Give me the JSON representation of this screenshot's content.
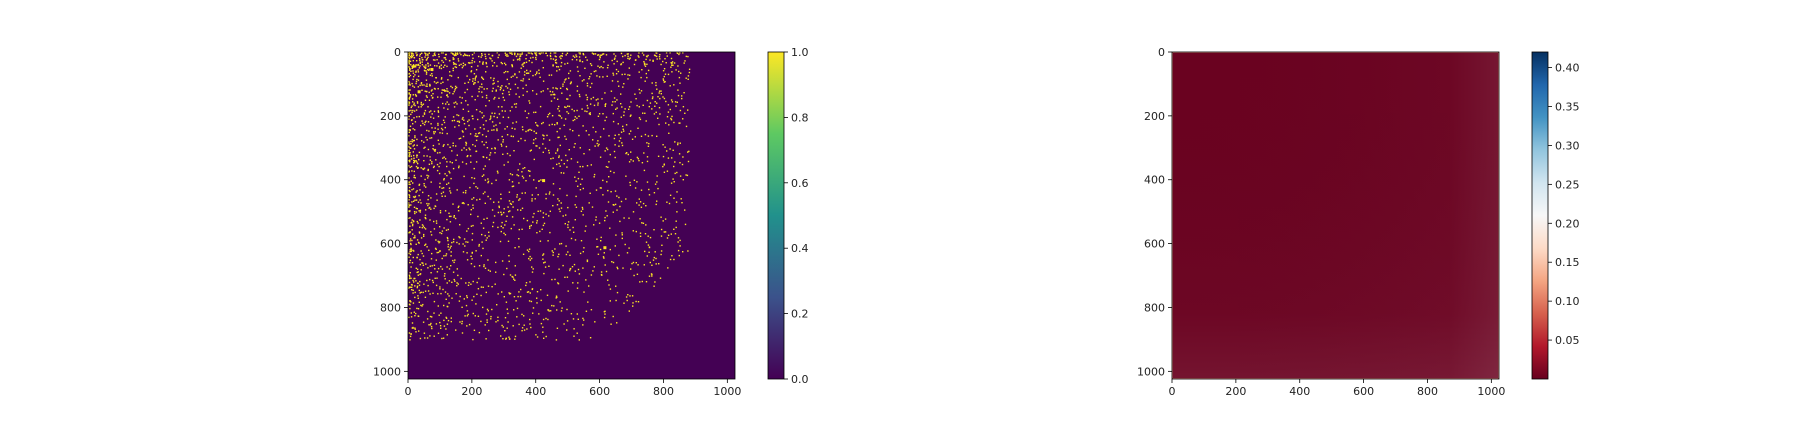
{
  "chart_data": [
    {
      "type": "heatmap",
      "title": "",
      "xlabel": "",
      "ylabel": "",
      "xlim": [
        0,
        1024
      ],
      "ylim": [
        1024,
        0
      ],
      "xticks": [
        0,
        200,
        400,
        600,
        800,
        1000
      ],
      "yticks": [
        0,
        200,
        400,
        600,
        800,
        1000
      ],
      "colormap": "viridis",
      "value_range": [
        0.0,
        1.0
      ],
      "background_value": 0.0,
      "description_of_values": "binary matrix; sparse 1-entries concentrated near the top-left origin, density falling off toward larger row/column indices; empty region beyond roughly column 880 and row 900",
      "colorbar": {
        "ticks": [
          "0.0",
          "0.2",
          "0.4",
          "0.6",
          "0.8",
          "1.0"
        ],
        "colors": [
          "#440154",
          "#3b528b",
          "#21918c",
          "#5ec962",
          "#fde725"
        ]
      }
    },
    {
      "type": "heatmap",
      "title": "",
      "xlabel": "",
      "ylabel": "",
      "xlim": [
        0,
        1024
      ],
      "ylim": [
        1024,
        0
      ],
      "xticks": [
        0,
        200,
        400,
        600,
        800,
        1000
      ],
      "yticks": [
        0,
        200,
        400,
        600,
        800,
        1000
      ],
      "colormap": "RdBu",
      "value_range": [
        0.0,
        0.42
      ],
      "description_of_values": "nearly uniform low values (~0.0–0.02) across the whole matrix, slightly higher toward the right and bottom edges",
      "colorbar": {
        "ticks": [
          "0.05",
          "0.10",
          "0.15",
          "0.20",
          "0.25",
          "0.30",
          "0.35",
          "0.40"
        ],
        "colors": [
          "#67001f",
          "#b2182b",
          "#d6604d",
          "#f4a582",
          "#fddbc7",
          "#f7f7f7",
          "#d1e5f0",
          "#92c5de",
          "#4393c3",
          "#2166ac",
          "#053061"
        ]
      }
    }
  ]
}
